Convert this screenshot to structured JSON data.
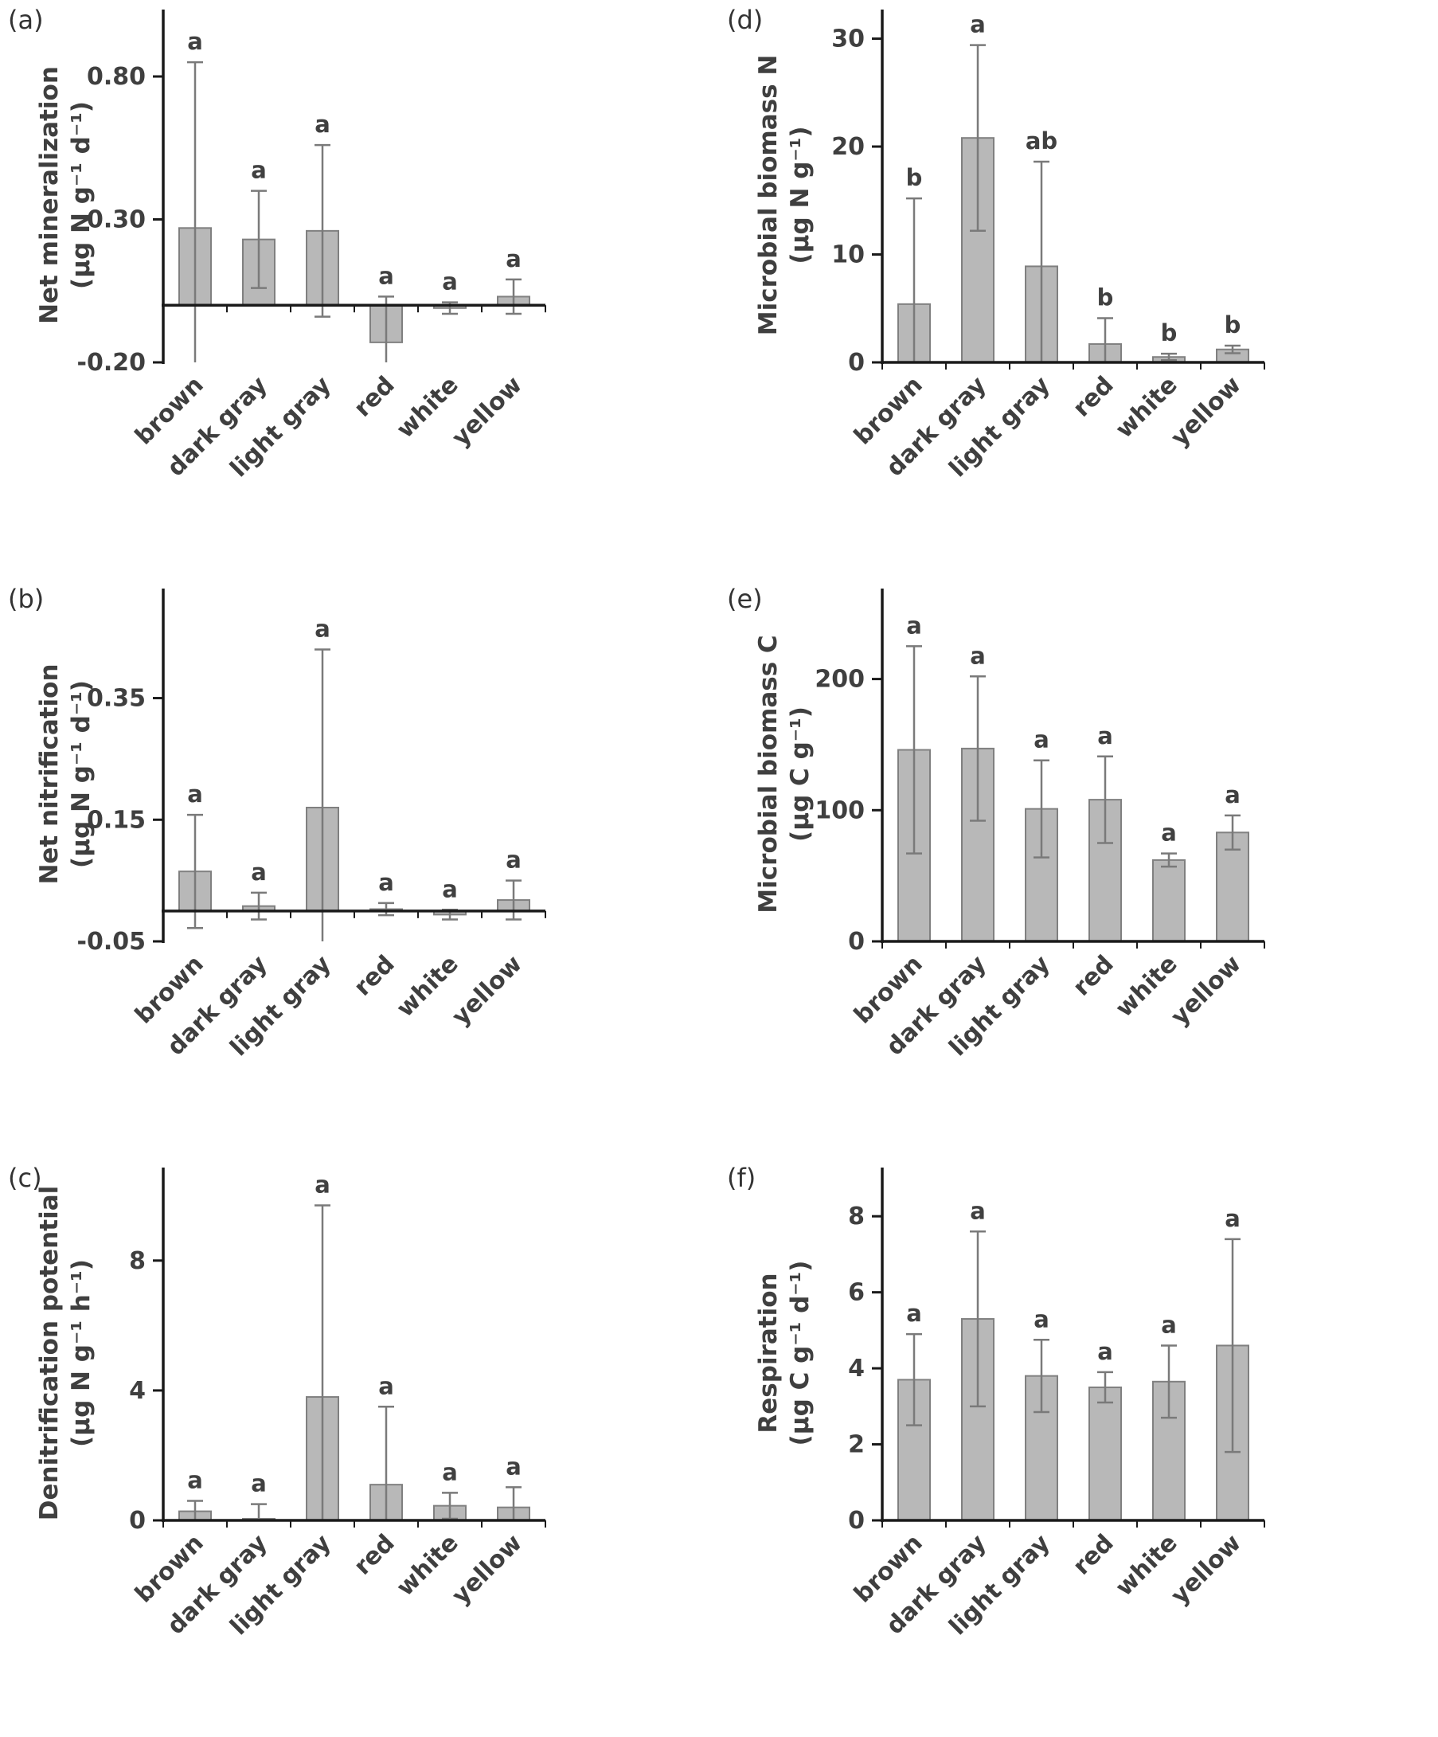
{
  "style": {
    "bar_fill": "#b8b8b8",
    "bar_stroke": "#808080",
    "error_color": "#7a7a7a",
    "axis_color": "#1a1a1a",
    "label_color": "#3f3f3f",
    "letter_color": "#404040",
    "background": "#ffffff"
  },
  "chart_data": [
    {
      "type": "bar",
      "panel": "(a)",
      "ylabel": "Net mineralization",
      "ylabel_units": "(µg N g⁻¹ d⁻¹)",
      "categories": [
        "brown",
        "dark gray",
        "light gray",
        "red",
        "white",
        "yellow"
      ],
      "values": [
        0.27,
        0.23,
        0.26,
        -0.13,
        -0.01,
        0.03
      ],
      "errors": [
        0.58,
        0.17,
        0.3,
        0.16,
        0.02,
        0.06
      ],
      "sig_letters": [
        "a",
        "a",
        "a",
        "a",
        "a",
        "a"
      ],
      "ytick_values": [
        -0.2,
        0.3,
        0.8
      ],
      "ytick_labels": [
        "-0.20",
        "0.30",
        "0.80"
      ],
      "ylim": [
        -0.2,
        0.97
      ],
      "grid": false,
      "legend": false
    },
    {
      "type": "bar",
      "panel": "(d)",
      "ylabel": "Microbial biomass N",
      "ylabel_units": "(µg N g⁻¹)",
      "categories": [
        "brown",
        "dark gray",
        "light gray",
        "red",
        "white",
        "yellow"
      ],
      "values": [
        5.4,
        20.8,
        8.9,
        1.7,
        0.5,
        1.2
      ],
      "errors": [
        9.8,
        8.6,
        9.7,
        2.4,
        0.3,
        0.35
      ],
      "sig_letters": [
        "b",
        "a",
        "ab",
        "b",
        "b",
        "b"
      ],
      "ytick_values": [
        0,
        10,
        20,
        30
      ],
      "ytick_labels": [
        "0",
        "10",
        "20",
        "30"
      ],
      "ylim": [
        0,
        31
      ],
      "grid": false,
      "legend": false
    },
    {
      "type": "bar",
      "panel": "(b)",
      "ylabel": "Net nitrification",
      "ylabel_units": "(µg N g⁻¹ d⁻¹)",
      "categories": [
        "brown",
        "dark gray",
        "light gray",
        "red",
        "white",
        "yellow"
      ],
      "values": [
        0.065,
        0.008,
        0.17,
        0.003,
        -0.006,
        0.018
      ],
      "errors": [
        0.093,
        0.022,
        0.26,
        0.01,
        0.008,
        0.032
      ],
      "sig_letters": [
        "a",
        "a",
        "a",
        "a",
        "a",
        "a"
      ],
      "ytick_values": [
        -0.05,
        0.15,
        0.35
      ],
      "ytick_labels": [
        "-0.05",
        "0.15",
        "0.35"
      ],
      "ylim": [
        -0.05,
        0.5
      ],
      "grid": false,
      "legend": false
    },
    {
      "type": "bar",
      "panel": "(e)",
      "ylabel": "Microbial biomass C",
      "ylabel_units": "(µg C g⁻¹)",
      "categories": [
        "brown",
        "dark gray",
        "light gray",
        "red",
        "white",
        "yellow"
      ],
      "values": [
        146,
        147,
        101,
        108,
        62,
        83
      ],
      "errors": [
        79,
        55,
        37,
        33,
        5,
        13
      ],
      "sig_letters": [
        "a",
        "a",
        "a",
        "a",
        "a",
        "a"
      ],
      "ytick_values": [
        0,
        100,
        200
      ],
      "ytick_labels": [
        "0",
        "100",
        "200"
      ],
      "ylim": [
        0,
        255
      ],
      "grid": false,
      "legend": false
    },
    {
      "type": "bar",
      "panel": "(c)",
      "ylabel": "Denitrification potential",
      "ylabel_units": "(µg N g⁻¹ h⁻¹)",
      "categories": [
        "brown",
        "dark gray",
        "light gray",
        "red",
        "white",
        "yellow"
      ],
      "values": [
        0.28,
        0.05,
        3.8,
        1.1,
        0.45,
        0.4
      ],
      "errors": [
        0.32,
        0.45,
        5.9,
        2.4,
        0.4,
        0.62
      ],
      "sig_letters": [
        "a",
        "a",
        "a",
        "a",
        "a",
        "a"
      ],
      "ytick_values": [
        0,
        4,
        8
      ],
      "ytick_labels": [
        "0",
        "4",
        "8"
      ],
      "ylim": [
        0,
        10.3
      ],
      "grid": false,
      "legend": false
    },
    {
      "type": "bar",
      "panel": "(f)",
      "ylabel": "Respiration",
      "ylabel_units": "(µg C g⁻¹ d⁻¹)",
      "categories": [
        "brown",
        "dark gray",
        "light gray",
        "red",
        "white",
        "yellow"
      ],
      "values": [
        3.7,
        5.3,
        3.8,
        3.5,
        3.65,
        4.6
      ],
      "errors": [
        1.2,
        2.3,
        0.95,
        0.4,
        0.95,
        2.8
      ],
      "sig_letters": [
        "a",
        "a",
        "a",
        "a",
        "a",
        "a"
      ],
      "ytick_values": [
        0,
        2,
        4,
        6,
        8
      ],
      "ytick_labels": [
        "0",
        "2",
        "4",
        "6",
        "8"
      ],
      "ylim": [
        0,
        8.8
      ],
      "grid": false,
      "legend": false
    }
  ]
}
